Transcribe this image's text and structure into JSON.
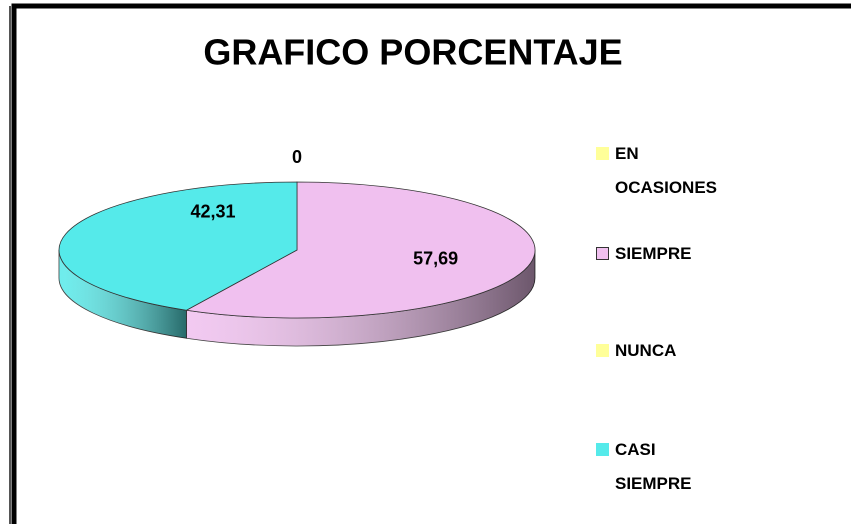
{
  "chart_data": {
    "type": "pie3d",
    "title": "GRAFICO PORCENTAJE",
    "categories": [
      "EN OCASIONES",
      "SIEMPRE",
      "NUNCA",
      "CASI SIEMPRE"
    ],
    "values": [
      0,
      57.69,
      0,
      42.31
    ],
    "value_labels": [
      "0",
      "57,69",
      null,
      "42,31"
    ],
    "colors": [
      "#ffff99",
      "#f0c0ef",
      "#ffff99",
      "#55eaea"
    ],
    "legend": "right"
  }
}
